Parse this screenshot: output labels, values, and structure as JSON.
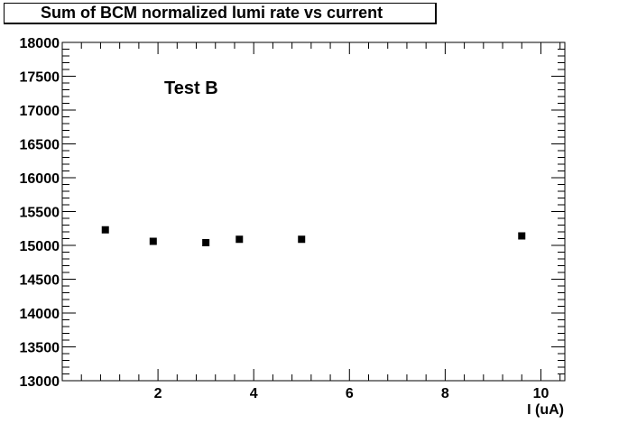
{
  "chart_data": {
    "type": "scatter",
    "title": "Sum of BCM normalized lumi rate vs current",
    "xlabel": "I (uA)",
    "ylabel": "",
    "annotation": "Test B",
    "xlim": [
      0,
      10.5
    ],
    "ylim": [
      13000,
      18000
    ],
    "x_ticks": [
      2,
      4,
      6,
      8,
      10
    ],
    "y_ticks": [
      13000,
      13500,
      14000,
      14500,
      15000,
      15500,
      16000,
      16500,
      17000,
      17500,
      18000
    ],
    "grid": false,
    "points": [
      {
        "x": 0.9,
        "y": 15230
      },
      {
        "x": 1.9,
        "y": 15060
      },
      {
        "x": 3.0,
        "y": 15040
      },
      {
        "x": 3.7,
        "y": 15090
      },
      {
        "x": 5.0,
        "y": 15090
      },
      {
        "x": 9.6,
        "y": 15140
      }
    ]
  }
}
